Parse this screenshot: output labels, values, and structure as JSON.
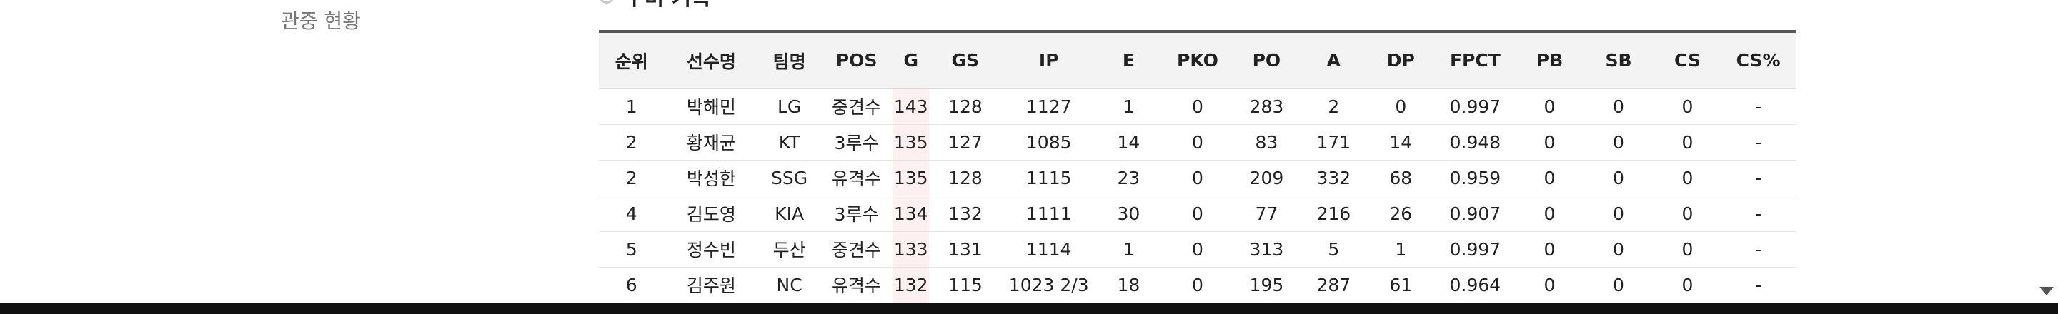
{
  "sidebar": {
    "items": [
      {
        "label": "관중 현황"
      }
    ]
  },
  "section": {
    "title": "수비 기록"
  },
  "colors": {
    "sorted_column_bg": "#fdf0f0",
    "header_bg": "#f3f3f3",
    "header_top_border": "#555555"
  },
  "table": {
    "sorted_column": "G",
    "columns": [
      "순위",
      "선수명",
      "팀명",
      "POS",
      "G",
      "GS",
      "IP",
      "E",
      "PKO",
      "PO",
      "A",
      "DP",
      "FPCT",
      "PB",
      "SB",
      "CS",
      "CS%"
    ],
    "rows": [
      [
        "1",
        "박해민",
        "LG",
        "중견수",
        "143",
        "128",
        "1127",
        "1",
        "0",
        "283",
        "2",
        "0",
        "0.997",
        "0",
        "0",
        "0",
        "-"
      ],
      [
        "2",
        "황재균",
        "KT",
        "3루수",
        "135",
        "127",
        "1085",
        "14",
        "0",
        "83",
        "171",
        "14",
        "0.948",
        "0",
        "0",
        "0",
        "-"
      ],
      [
        "2",
        "박성한",
        "SSG",
        "유격수",
        "135",
        "128",
        "1115",
        "23",
        "0",
        "209",
        "332",
        "68",
        "0.959",
        "0",
        "0",
        "0",
        "-"
      ],
      [
        "4",
        "김도영",
        "KIA",
        "3루수",
        "134",
        "132",
        "1111",
        "30",
        "0",
        "77",
        "216",
        "26",
        "0.907",
        "0",
        "0",
        "0",
        "-"
      ],
      [
        "5",
        "정수빈",
        "두산",
        "중견수",
        "133",
        "131",
        "1114",
        "1",
        "0",
        "313",
        "5",
        "1",
        "0.997",
        "0",
        "0",
        "0",
        "-"
      ],
      [
        "6",
        "김주원",
        "NC",
        "유격수",
        "132",
        "115",
        "1023 2/3",
        "18",
        "0",
        "195",
        "287",
        "61",
        "0.964",
        "0",
        "0",
        "0",
        "-"
      ]
    ]
  },
  "icons": {
    "section": "record-circle-icon",
    "scroll": "scroll-down-arrow-icon"
  }
}
